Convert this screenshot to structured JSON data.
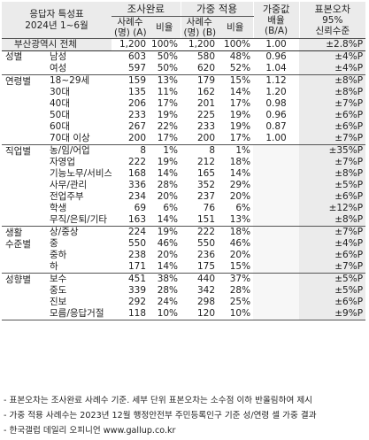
{
  "header": {
    "title_line1": "응답자 특성표",
    "title_line2": "2024년 1~6월",
    "group_complete": "조사완료",
    "group_weighted": "가중 적용",
    "weight_col_line1": "가중값",
    "weight_col_line2": "배율",
    "weight_col_line3": "(B/A)",
    "error_col_line1": "표본오차",
    "error_col_line2": "95%",
    "error_col_line3": "신뢰수준",
    "count_a_line1": "사례수",
    "count_a_line2": "(명) (A)",
    "ratio_label": "비율",
    "count_b_line1": "사례수",
    "count_b_line2": "(명) (B)",
    "ratio_b_label": "비율"
  },
  "total": {
    "label": "부산광역시 전체",
    "a": "1,200",
    "pa": "100%",
    "b": "1,200",
    "pb": "100%",
    "w": "1.00",
    "err": "±2.8%P"
  },
  "groups": [
    {
      "name": "성별",
      "rows": [
        {
          "label": "남성",
          "a": "603",
          "pa": "50%",
          "b": "580",
          "pb": "48%",
          "w": "0.96",
          "err": "±4%P"
        },
        {
          "label": "여성",
          "a": "597",
          "pa": "50%",
          "b": "620",
          "pb": "52%",
          "w": "1.04",
          "err": "±4%P"
        }
      ]
    },
    {
      "name": "연령별",
      "rows": [
        {
          "label": "18~29세",
          "a": "159",
          "pa": "13%",
          "b": "179",
          "pb": "15%",
          "w": "1.12",
          "err": "±8%P"
        },
        {
          "label": "30대",
          "a": "135",
          "pa": "11%",
          "b": "162",
          "pb": "14%",
          "w": "1.20",
          "err": "±8%P"
        },
        {
          "label": "40대",
          "a": "206",
          "pa": "17%",
          "b": "201",
          "pb": "17%",
          "w": "0.98",
          "err": "±7%P"
        },
        {
          "label": "50대",
          "a": "233",
          "pa": "19%",
          "b": "225",
          "pb": "19%",
          "w": "0.96",
          "err": "±6%P"
        },
        {
          "label": "60대",
          "a": "267",
          "pa": "22%",
          "b": "233",
          "pb": "19%",
          "w": "0.87",
          "err": "±6%P"
        },
        {
          "label": "70대 이상",
          "a": "200",
          "pa": "17%",
          "b": "200",
          "pb": "17%",
          "w": "1.00",
          "err": "±7%P"
        }
      ]
    },
    {
      "name": "직업별",
      "rows": [
        {
          "label": "농/임/어업",
          "a": "8",
          "pa": "1%",
          "b": "8",
          "pb": "1%",
          "w": "",
          "err": "±35%P"
        },
        {
          "label": "자영업",
          "a": "222",
          "pa": "19%",
          "b": "212",
          "pb": "18%",
          "w": "",
          "err": "±7%P"
        },
        {
          "label": "기능노무/서비스",
          "a": "168",
          "pa": "14%",
          "b": "165",
          "pb": "14%",
          "w": "",
          "err": "±8%P"
        },
        {
          "label": "사무/관리",
          "a": "336",
          "pa": "28%",
          "b": "352",
          "pb": "29%",
          "w": "",
          "err": "±5%P"
        },
        {
          "label": "전업주부",
          "a": "234",
          "pa": "20%",
          "b": "237",
          "pb": "20%",
          "w": "",
          "err": "±6%P"
        },
        {
          "label": "학생",
          "a": "69",
          "pa": "6%",
          "b": "76",
          "pb": "6%",
          "w": "",
          "err": "±12%P"
        },
        {
          "label": "무직/은퇴/기타",
          "a": "163",
          "pa": "14%",
          "b": "151",
          "pb": "13%",
          "w": "",
          "err": "±8%P"
        }
      ]
    },
    {
      "name": "생활",
      "name2": "수준별",
      "rows": [
        {
          "label": "상/중상",
          "a": "224",
          "pa": "19%",
          "b": "222",
          "pb": "18%",
          "w": "",
          "err": "±7%P"
        },
        {
          "label": "중",
          "a": "550",
          "pa": "46%",
          "b": "550",
          "pb": "46%",
          "w": "",
          "err": "±4%P"
        },
        {
          "label": "중하",
          "a": "238",
          "pa": "20%",
          "b": "236",
          "pb": "20%",
          "w": "",
          "err": "±6%P"
        },
        {
          "label": "하",
          "a": "171",
          "pa": "14%",
          "b": "175",
          "pb": "15%",
          "w": "",
          "err": "±7%P"
        }
      ]
    },
    {
      "name": "성향별",
      "rows": [
        {
          "label": "보수",
          "a": "451",
          "pa": "38%",
          "b": "440",
          "pb": "37%",
          "w": "",
          "err": "±5%P"
        },
        {
          "label": "중도",
          "a": "339",
          "pa": "28%",
          "b": "342",
          "pb": "28%",
          "w": "",
          "err": "±5%P"
        },
        {
          "label": "진보",
          "a": "292",
          "pa": "24%",
          "b": "298",
          "pb": "25%",
          "w": "",
          "err": "±6%P"
        },
        {
          "label": "모름/응답거절",
          "a": "118",
          "pa": "10%",
          "b": "120",
          "pb": "10%",
          "w": "",
          "err": "±9%P"
        }
      ]
    }
  ],
  "notes": [
    "- 표본오차는 조사완료 사례수 기준. 세부 단위 표본오차는 소수점 이하 반올림하여 제시",
    "- 가중 적용 사례수는 2023년 12월 행정안전부 주민등록인구 기준 성/연령 셀 가중 결과",
    "- 한국갤럽 데일리 오피니언 www.gallup.co.kr"
  ]
}
